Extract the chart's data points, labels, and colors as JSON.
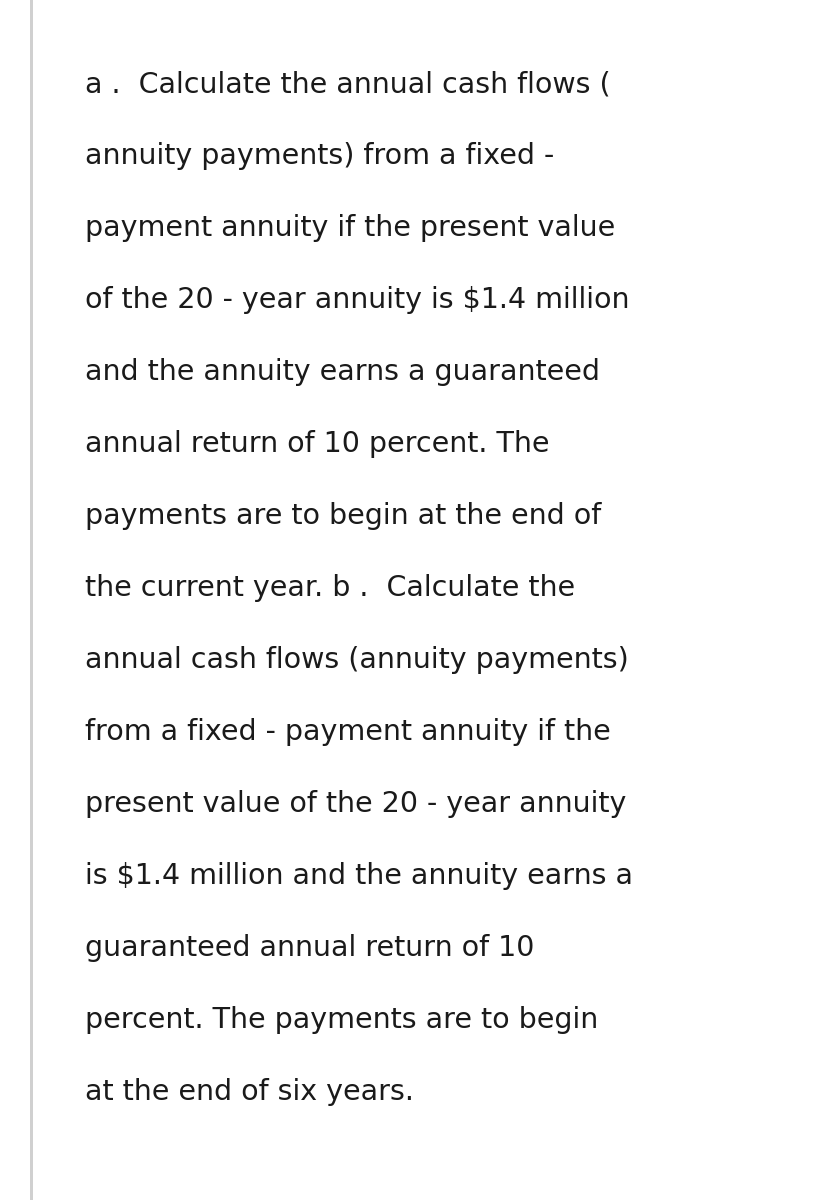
{
  "background_color": "#ffffff",
  "left_bar_color": "#d0d0d0",
  "text_lines": [
    "a .  Calculate the annual cash flows (",
    "annuity payments) from a fixed -",
    "payment annuity if the present value",
    "of the 20 - year annuity is $1.4 million",
    "and the annuity earns a guaranteed",
    "annual return of 10 percent. The",
    "payments are to begin at the end of",
    "the current year. b .  Calculate the",
    "annual cash flows (annuity payments)",
    "from a fixed - payment annuity if the",
    "present value of the 20 - year annuity",
    "is $1.4 million and the annuity earns a",
    "guaranteed annual return of 10",
    "percent. The payments are to begin",
    "at the end of six years."
  ],
  "text_color": "#1a1a1a",
  "font_size": 20.5,
  "font_family": "DejaVu Sans"
}
